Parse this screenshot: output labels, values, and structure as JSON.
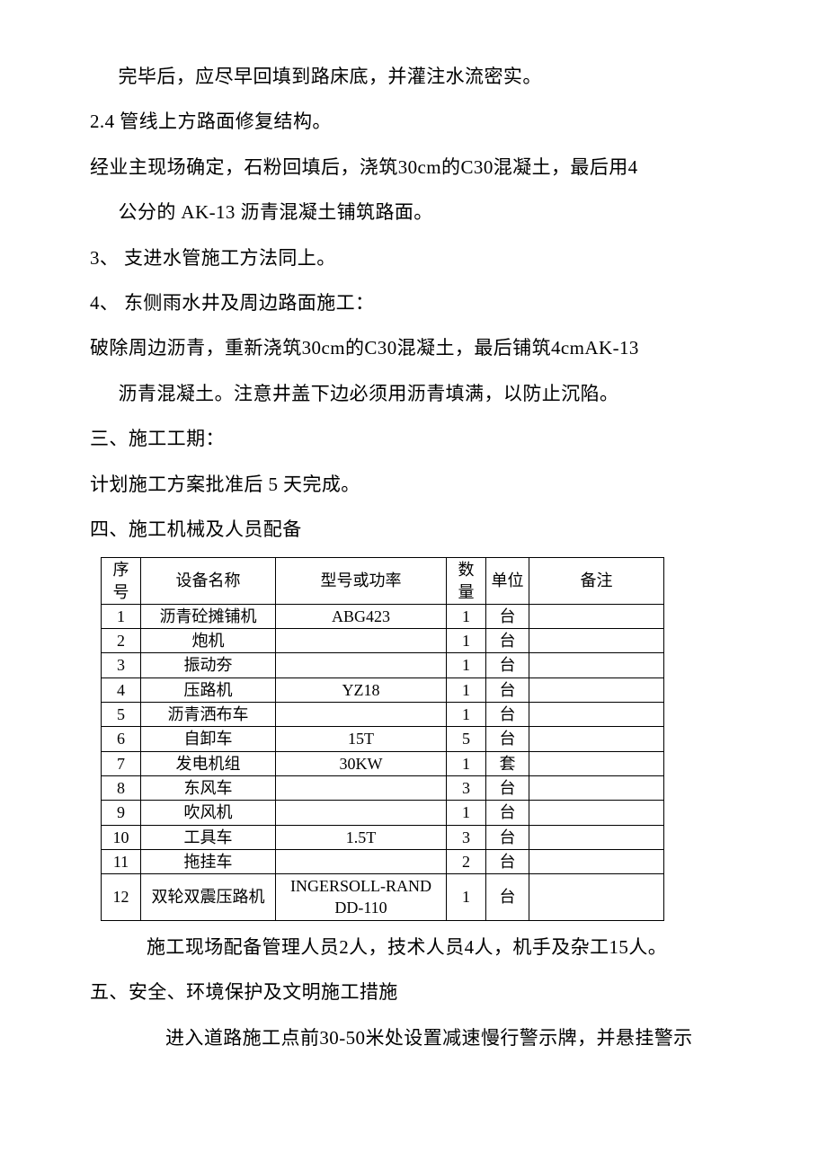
{
  "paragraphs": {
    "p1": "完毕后，应尽早回填到路床底，并灌注水流密实。",
    "p2": "2.4 管线上方路面修复结构。",
    "p3": "经业主现场确定，石粉回填后，浇筑30cm的C30混凝土，最后用4",
    "p4": "公分的 AK-13 沥青混凝土铺筑路面。",
    "p5": "3、 支进水管施工方法同上。",
    "p6": "4、 东侧雨水井及周边路面施工：",
    "p7": "破除周边沥青，重新浇筑30cm的C30混凝土，最后铺筑4cmAK-13",
    "p8": "沥青混凝土。注意井盖下边必须用沥青填满，以防止沉陷。",
    "p9": "三、施工工期：",
    "p10": "计划施工方案批准后 5 天完成。",
    "p11": "四、施工机械及人员配备",
    "p12": "施工现场配备管理人员2人，技术人员4人，机手及杂工15人。",
    "p13": "五、安全、环境保护及文明施工措施",
    "p14": "进入道路施工点前30-50米处设置减速慢行警示牌，并悬挂警示"
  },
  "table": {
    "headers": [
      "序号",
      "设备名称",
      "型号或功率",
      "数量",
      "单位",
      "备注"
    ],
    "rows": [
      [
        "1",
        "沥青砼摊铺机",
        "ABG423",
        "1",
        "台",
        ""
      ],
      [
        "2",
        "炮机",
        "",
        "1",
        "台",
        ""
      ],
      [
        "3",
        "振动夯",
        "",
        "1",
        "台",
        ""
      ],
      [
        "4",
        "压路机",
        "YZ18",
        "1",
        "台",
        ""
      ],
      [
        "5",
        "沥青洒布车",
        "",
        "1",
        "台",
        ""
      ],
      [
        "6",
        "自卸车",
        "15T",
        "5",
        "台",
        ""
      ],
      [
        "7",
        "发电机组",
        "30KW",
        "1",
        "套",
        ""
      ],
      [
        "8",
        "东风车",
        "",
        "3",
        "台",
        ""
      ],
      [
        "9",
        "吹风机",
        "",
        "1",
        "台",
        ""
      ],
      [
        "10",
        "工具车",
        "1.5T",
        "3",
        "台",
        ""
      ],
      [
        "11",
        "拖挂车",
        "",
        "2",
        "台",
        ""
      ],
      [
        "12",
        "双轮双震压路机",
        "INGERSOLL-RAND DD-110",
        "1",
        "台",
        ""
      ]
    ]
  }
}
